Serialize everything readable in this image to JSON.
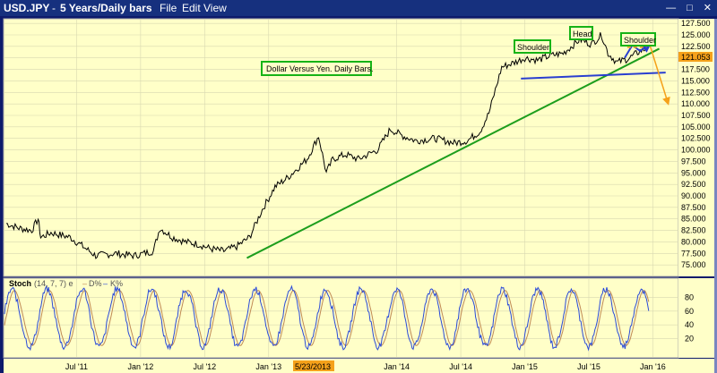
{
  "window": {
    "title": "USD.JPY",
    "period": "5 Years/Daily bars",
    "menu": [
      "File",
      "Edit",
      "View"
    ],
    "controls": [
      "minimize-icon",
      "maximize-icon",
      "close-icon"
    ]
  },
  "colors": {
    "chart_bg": "#ffffc8",
    "price_line": "#000000",
    "support_line": "#1d9e1d",
    "neckline": "#2a3fd0",
    "target_arrow": "#f5a11a",
    "d_line": "#c08a55",
    "k_line": "#2a4ad8",
    "box_border": "#16b316",
    "price_label_bg": "#f5a11a"
  },
  "annotations": {
    "caption": "Dollar Versus Yen.  Daily Bars.",
    "left_shoulder": "Shoulder",
    "head": "Head",
    "right_shoulder": "Shoulder",
    "last_price": "121.053",
    "highlight_date": "5/23/2013"
  },
  "stoch": {
    "label": "Stoch",
    "params": "(14, 7, 7) e",
    "d_label": "D%",
    "k_label": "K%",
    "d_dash": "–",
    "k_dash": "–",
    "levels": [
      "80",
      "60",
      "40",
      "20"
    ]
  },
  "chart_data": {
    "type": "line",
    "title": "USD.JPY",
    "y_ticks": [
      75,
      77.5,
      80,
      82.5,
      85,
      87.5,
      90,
      92.5,
      95,
      97.5,
      100,
      102.5,
      105,
      107.5,
      110,
      112.5,
      115,
      117.5,
      120,
      122.5,
      125,
      127.5
    ],
    "ylim": [
      72.5,
      128.5
    ],
    "x_labels": [
      "Jul '11",
      "Jan '12",
      "Jul '12",
      "Jan '13",
      "Jan '14",
      "Jul '14",
      "Jan '15",
      "Jul '15",
      "Jan '16"
    ],
    "x_label_positions": [
      2011.5,
      2012.0,
      2012.5,
      2013.0,
      2014.0,
      2014.5,
      2015.0,
      2015.5,
      2016.0
    ],
    "xlim": [
      2010.93,
      2016.2
    ],
    "price_series": {
      "x": [
        2010.95,
        2011.05,
        2011.15,
        2011.2,
        2011.22,
        2011.3,
        2011.45,
        2011.55,
        2011.65,
        2011.8,
        2011.95,
        2012.1,
        2012.15,
        2012.25,
        2012.35,
        2012.45,
        2012.55,
        2012.65,
        2012.75,
        2012.85,
        2012.95,
        2013.05,
        2013.15,
        2013.3,
        2013.39,
        2013.45,
        2013.5,
        2013.6,
        2013.7,
        2013.85,
        2013.95,
        2014.05,
        2014.15,
        2014.3,
        2014.45,
        2014.55,
        2014.65,
        2014.72,
        2014.82,
        2014.92,
        2015.0,
        2015.1,
        2015.2,
        2015.3,
        2015.43,
        2015.52,
        2015.6,
        2015.65,
        2015.72,
        2015.82,
        2015.9,
        2015.95
      ],
      "y": [
        84,
        83,
        82.5,
        85,
        81,
        82,
        81,
        79,
        77,
        77.5,
        77,
        78,
        83,
        81,
        80,
        79.5,
        78.5,
        78,
        79,
        81,
        87,
        92,
        94,
        98,
        103,
        95,
        98,
        99,
        98,
        100,
        104.5,
        103,
        102,
        102.5,
        101.5,
        102,
        104,
        108,
        118,
        119,
        120,
        119.5,
        120.5,
        121,
        124,
        123,
        125,
        121,
        119,
        120,
        121.5,
        122
      ],
      "color": "black"
    },
    "support_line": {
      "x": [
        2012.83,
        2016.05
      ],
      "y": [
        76.5,
        122.0
      ]
    },
    "neckline": {
      "x": [
        2014.97,
        2016.1
      ],
      "y": [
        115.5,
        116.8
      ]
    },
    "projection_arrow": {
      "x": [
        2015.98,
        2016.12
      ],
      "y": [
        122.5,
        110.0
      ]
    },
    "right_shoulder_path": {
      "x": [
        2015.78,
        2015.84,
        2015.9,
        2015.98
      ],
      "y": [
        120.0,
        122.8,
        121.5,
        123.2
      ]
    },
    "stochastic": {
      "ylim": [
        0,
        100
      ],
      "levels": [
        20,
        40,
        60,
        80
      ],
      "k_cycle_centers": [
        2011.0,
        2011.12,
        2011.3,
        2011.45,
        2011.62,
        2011.8,
        2011.95,
        2012.12,
        2012.3,
        2012.45,
        2012.62,
        2012.8,
        2012.95,
        2013.1,
        2013.28,
        2013.45,
        2013.6,
        2013.78,
        2013.95,
        2014.12,
        2014.3,
        2014.45,
        2014.62,
        2014.8,
        2014.95,
        2015.12,
        2015.3,
        2015.45,
        2015.62,
        2015.8,
        2015.92
      ]
    }
  }
}
